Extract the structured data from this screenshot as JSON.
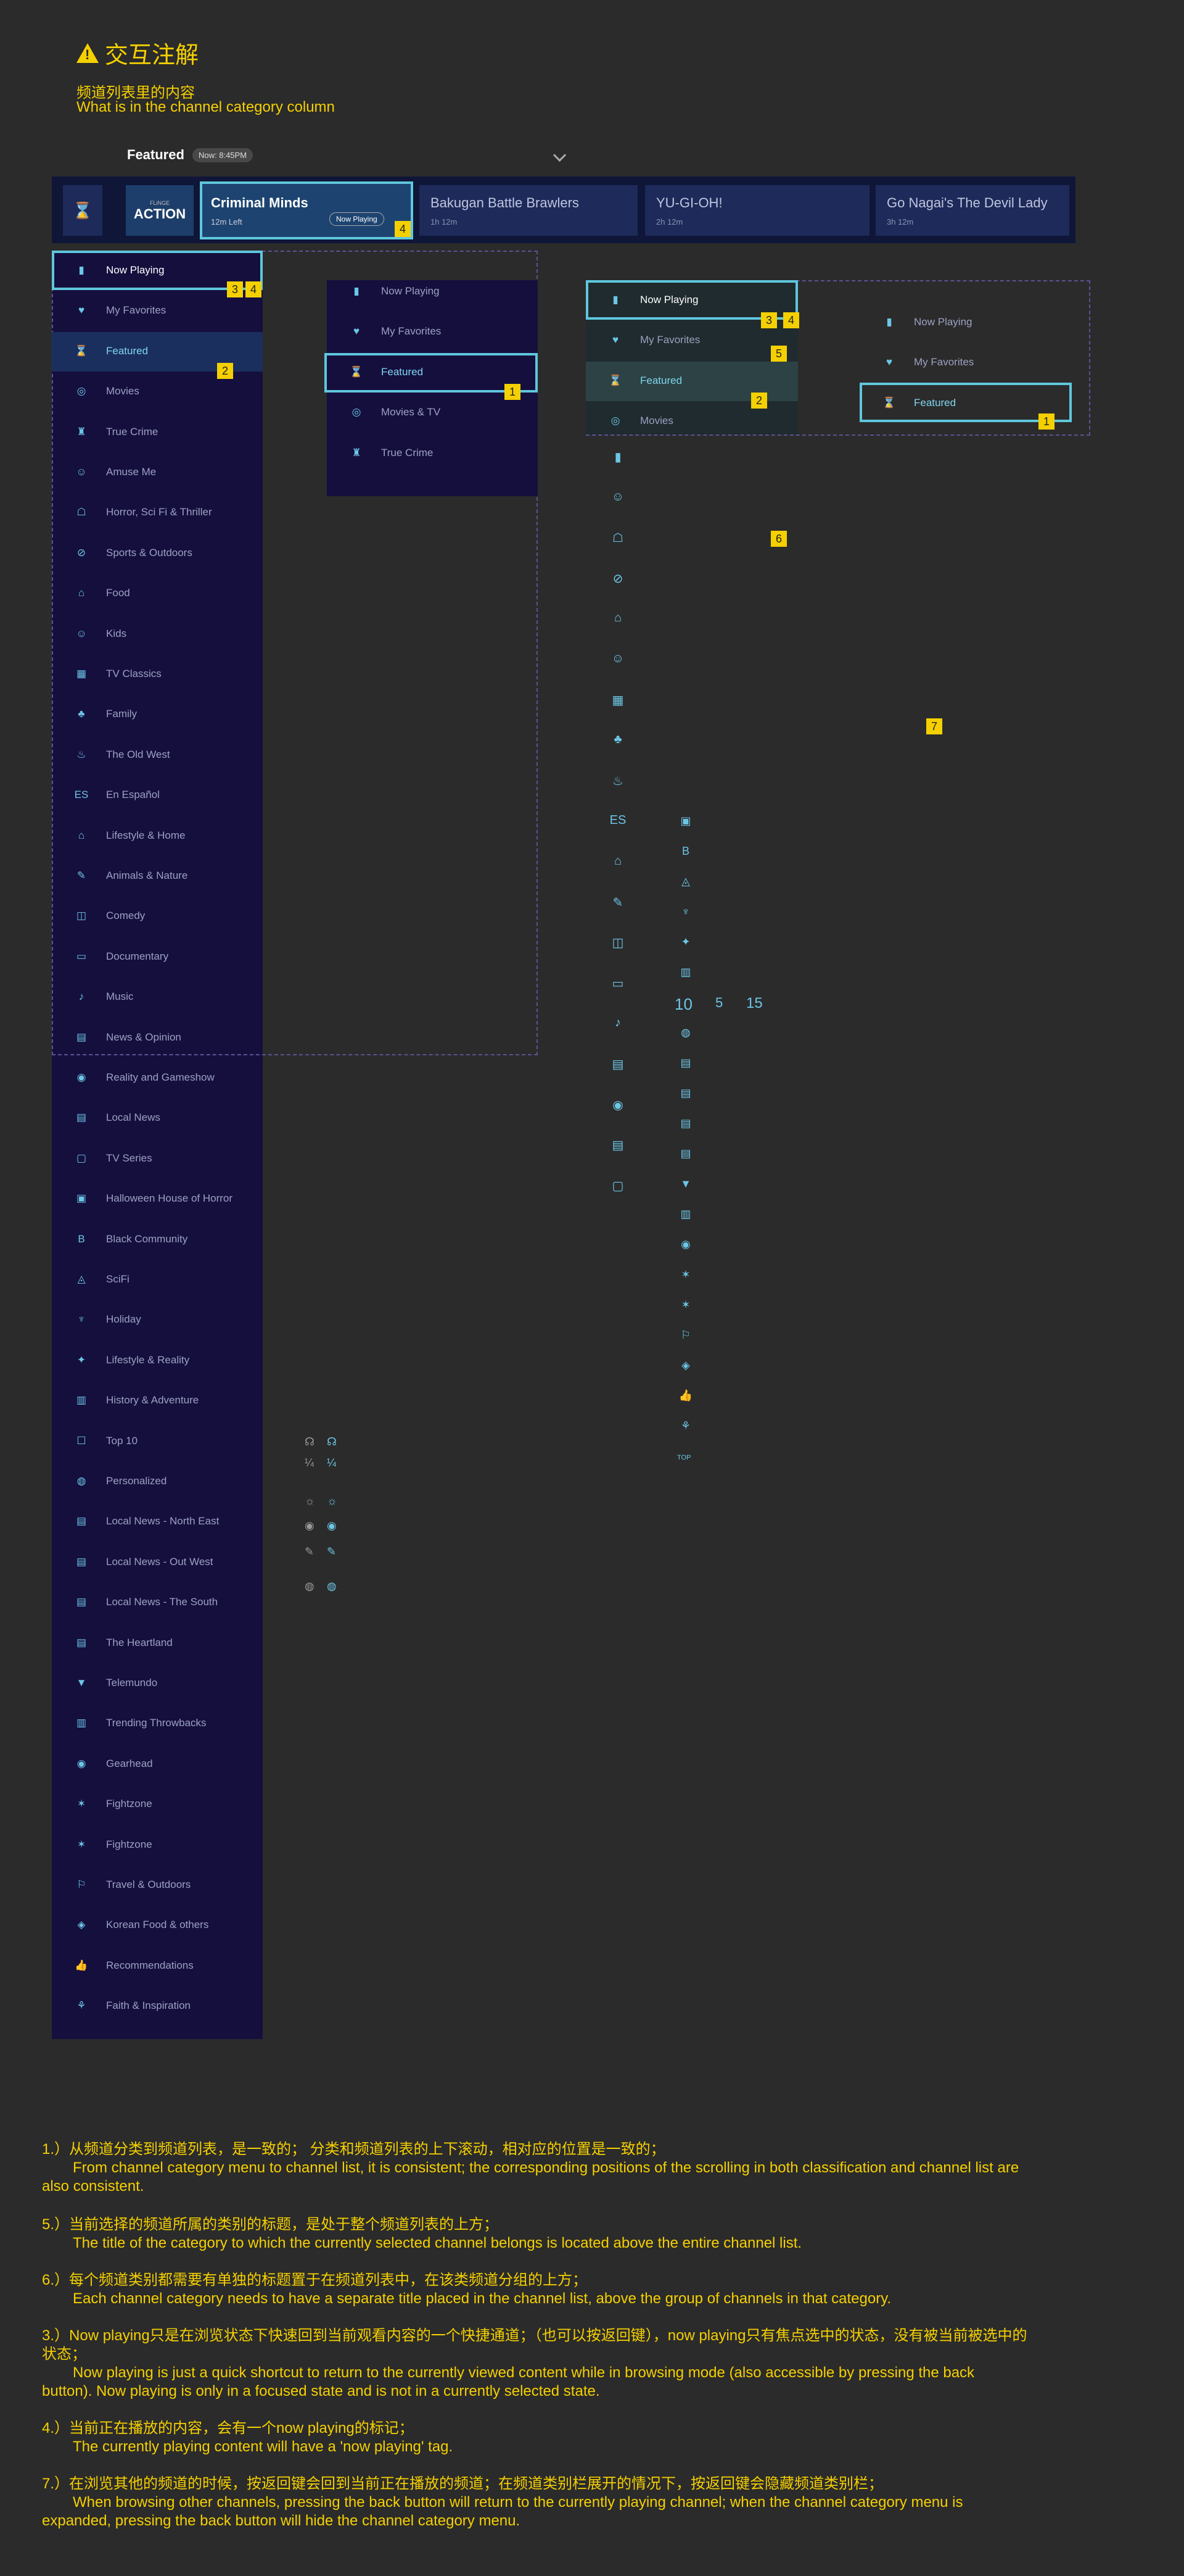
{
  "header": {
    "title": "交互注解",
    "subtitle_cn": "频道列表里的内容",
    "subtitle_en": "What is in the channel category column"
  },
  "topbar": {
    "filter": "Featured",
    "time": "Now: 8:45PM"
  },
  "strip": {
    "logo_small": "FLiNGE",
    "logo_big": "ACTION",
    "now_title": "Criminal Minds",
    "now_left": "12m Left",
    "now_tag": "Now Playing",
    "chips": [
      {
        "title": "Bakugan Battle Brawlers",
        "dur": "1h 12m"
      },
      {
        "title": "YU-GI-OH!",
        "dur": "2h 12m"
      },
      {
        "title": "Go Nagai's The Devil Lady",
        "dur": "3h 12m"
      }
    ]
  },
  "categories": [
    "Now Playing",
    "My Favorites",
    "Featured",
    "Movies",
    "True Crime",
    "Amuse Me",
    "Horror, Sci Fi & Thriller",
    "Sports & Outdoors",
    "Food",
    "Kids",
    "TV Classics",
    "Family",
    "The Old West",
    "En Español",
    "Lifestyle & Home",
    "Animals & Nature",
    "Comedy",
    "Documentary",
    "Music",
    "News & Opinion",
    "Reality and Gameshow",
    "Local News",
    "TV Series",
    "Halloween House of Horror",
    "Black Community",
    "SciFi",
    "Holiday",
    "Lifestyle & Reality",
    "History & Adventure",
    "Top 10",
    "Personalized",
    "Local News - North East",
    "Local News - Out West",
    "Local News - The South",
    "The Heartland",
    "Telemundo",
    "Trending Throwbacks",
    "Gearhead",
    "Fightzone",
    "Fightzone",
    "Travel & Outdoors",
    "Korean Food & others",
    "Recommendations",
    "Faith & Inspiration"
  ],
  "mini_list": [
    "Now Playing",
    "My Favorites",
    "Featured",
    "Movies & TV",
    "True Crime"
  ],
  "right_list": [
    "Now Playing",
    "My Favorites",
    "Featured",
    "Movies"
  ],
  "right_list2": [
    "Now Playing",
    "My Favorites",
    "Featured"
  ],
  "top10_marks": {
    "a": "10",
    "b": "5",
    "c": "15",
    "d": "TOP"
  },
  "tags": [
    "1",
    "2",
    "3",
    "4",
    "5",
    "6",
    "7"
  ],
  "notes": [
    {
      "cn": "1.）从频道分类到频道列表，是一致的； 分类和频道列表的上下滚动，相对应的位置是一致的；",
      "en": "From channel category menu to channel list, it is consistent; the corresponding positions of the scrolling in both classification and channel list are also consistent."
    },
    {
      "cn": "5.）当前选择的频道所属的类别的标题，是处于整个频道列表的上方；",
      "en": "The title of the category to which the currently selected channel belongs is located above the entire channel list."
    },
    {
      "cn": "6.）每个频道类别都需要有单独的标题置于在频道列表中，在该类频道分组的上方；",
      "en": "Each channel category needs to have a separate title placed in the channel list, above the group of channels in that category."
    },
    {
      "cn": "3.）Now playing只是在浏览状态下快速回到当前观看内容的一个快捷通道；（也可以按返回键），now playing只有焦点选中的状态，没有被当前被选中的状态；",
      "en": "Now playing is just a quick shortcut to return to the currently viewed content while in browsing mode (also accessible by pressing the back button). Now playing is only in a focused state and is not in a currently selected state."
    },
    {
      "cn": "4.）当前正在播放的内容，会有一个now playing的标记；",
      "en": "The currently playing content will have a 'now playing' tag."
    },
    {
      "cn": "7.）在浏览其他的频道的时候，按返回键会回到当前正在播放的频道；在频道类别栏展开的情况下，按返回键会隐藏频道类别栏；",
      "en": "When browsing other channels, pressing the back button will return to the currently playing channel; when the channel category menu is expanded, pressing the back button will hide the channel category menu."
    }
  ]
}
